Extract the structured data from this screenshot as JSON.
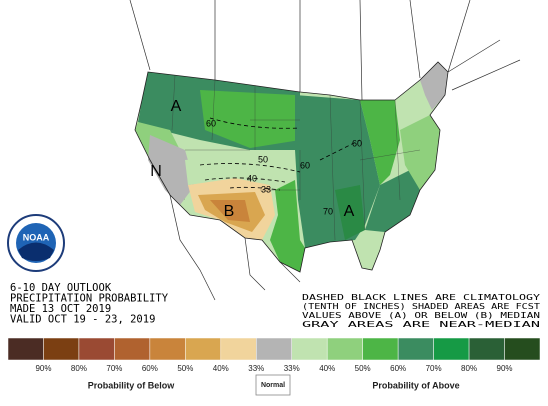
{
  "title_block": {
    "lines": [
      "6-10 DAY OUTLOOK",
      "PRECIPITATION PROBABILITY",
      "MADE  13 OCT 2019",
      "VALID  OCT 19 - 23, 2019"
    ]
  },
  "note": {
    "lines": [
      "DASHED BLACK LINES ARE CLIMATOLOGY",
      "(TENTH OF INCHES) SHADED AREAS ARE FCST",
      "VALUES ABOVE (A) OR BELOW (B) MEDIAN",
      "GRAY AREAS ARE NEAR-MEDIAN"
    ]
  },
  "logo": {
    "text": "NOAA"
  },
  "map_labels": [
    {
      "text": "A",
      "color": "#000"
    },
    {
      "text": "A",
      "color": "#000"
    },
    {
      "text": "N",
      "color": "#000"
    },
    {
      "text": "B",
      "color": "#000"
    },
    {
      "text": "60",
      "color": "#000"
    },
    {
      "text": "50",
      "color": "#000"
    },
    {
      "text": "40",
      "color": "#000"
    },
    {
      "text": "33",
      "color": "#000"
    },
    {
      "text": "60",
      "color": "#000"
    },
    {
      "text": "60",
      "color": "#000"
    },
    {
      "text": "70",
      "color": "#000"
    }
  ],
  "legend": {
    "swatches": [
      "#4b2c24",
      "#7b3f12",
      "#9a4a33",
      "#b0622f",
      "#c9843b",
      "#d9a650",
      "#f1d49c",
      "#b4b4b4",
      "#c0e3b0",
      "#8fd07d",
      "#4db546",
      "#3b8c60",
      "#169a45",
      "#2a6036",
      "#254d1e"
    ],
    "labels": [
      "90%",
      "80%",
      "70%",
      "60%",
      "50%",
      "40%",
      "33%",
      "33%",
      "40%",
      "50%",
      "60%",
      "70%",
      "80%",
      "90%"
    ],
    "below": "Probability of Below",
    "normal": "Normal",
    "above": "Probability of Above"
  }
}
